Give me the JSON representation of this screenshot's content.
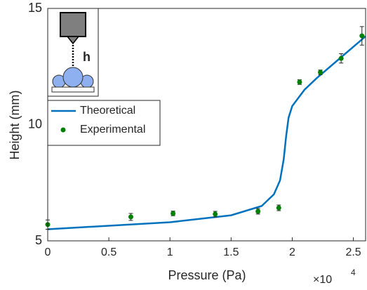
{
  "chart_data": {
    "type": "line",
    "x_label": "Pressure (Pa)",
    "y_label": "Height (mm)",
    "x_multiplier": "×10",
    "x_exponent": "4",
    "inset_label": "h",
    "xlim": [
      0,
      26000
    ],
    "ylim": [
      5,
      15
    ],
    "xticks": [
      0,
      {
        "value": 5000,
        "label": "0.5"
      },
      {
        "value": 10000,
        "label": "1"
      },
      {
        "value": 15000,
        "label": "1.5"
      },
      {
        "value": 20000,
        "label": "2"
      },
      {
        "value": 25000,
        "label": "2.5"
      }
    ],
    "yticks": [
      5,
      10,
      15
    ],
    "legend": "upper left",
    "series": [
      {
        "name": "Theoretical",
        "type": "line",
        "color": "#0072bd",
        "x": [
          0,
          5000,
          10000,
          15000,
          17500,
          18500,
          19000,
          19300,
          19500,
          19700,
          20000,
          21000,
          22000,
          24000,
          26000
        ],
        "values": [
          5.5,
          5.65,
          5.8,
          6.1,
          6.5,
          7.0,
          7.6,
          8.5,
          9.5,
          10.3,
          10.8,
          11.5,
          12.0,
          12.9,
          13.8
        ]
      },
      {
        "name": "Experimental",
        "type": "scatter",
        "color": "#008000",
        "x": [
          0,
          6800,
          10250,
          13700,
          17200,
          18900,
          20600,
          22300,
          24000,
          25700
        ],
        "values": [
          5.7,
          6.03,
          6.18,
          6.15,
          6.27,
          6.42,
          11.83,
          12.25,
          12.85,
          13.82
        ],
        "errors": [
          0.2,
          0.15,
          0.1,
          0.12,
          0.12,
          0.12,
          0.1,
          0.1,
          0.2,
          0.4
        ]
      }
    ]
  }
}
